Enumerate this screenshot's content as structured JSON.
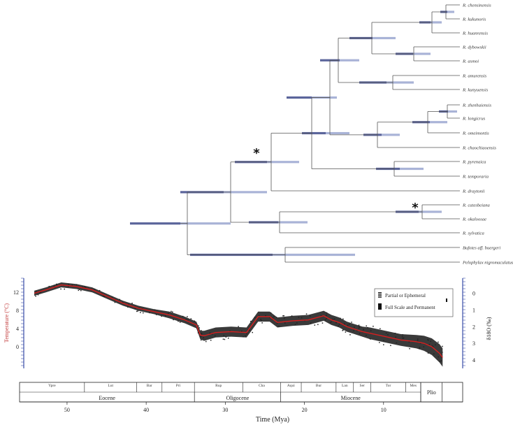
{
  "phylogeny": {
    "taxa": [
      "R. chensinensis",
      "R. kukunoris",
      "R. huanrensis",
      "R. dybowskii",
      "R. asmoi",
      "R. amurensis",
      "R. kunyuensis",
      "R. zhenhaiensis",
      "R. longicrus",
      "R. omeimontis",
      "R. chaochiaoensis",
      "R. pyrenaica",
      "R. temporaria",
      "R. draytonii",
      "R. catesbeiana",
      "R. okaloosae",
      "R. sylvatica",
      "Bufotes aff. buergeri",
      "Pelophylax nigromaculatus"
    ],
    "calibration_marker": "*",
    "colors": {
      "branch": "#555555",
      "ci_bar_dark": "#3e4a8a",
      "ci_bar_light": "#9aa6d0"
    }
  },
  "chart_data": {
    "type": "line",
    "series": [
      {
        "x": [
          55.5,
          54,
          52,
          50,
          48,
          46,
          44,
          42,
          40,
          38,
          36,
          34.5,
          34,
          33.5,
          32,
          30,
          28,
          26.5,
          25,
          24,
          22,
          20,
          18,
          17,
          16,
          15,
          14,
          13,
          12,
          10,
          8,
          6,
          5,
          4,
          3,
          2.6
        ],
        "y": [
          0.0,
          -0.2,
          -0.5,
          -0.4,
          -0.2,
          0.2,
          0.6,
          0.9,
          1.1,
          1.3,
          1.6,
          1.9,
          2.5,
          2.55,
          2.35,
          2.3,
          2.35,
          1.4,
          1.4,
          1.75,
          1.65,
          1.6,
          1.35,
          1.6,
          1.75,
          2.0,
          2.15,
          2.3,
          2.4,
          2.6,
          2.8,
          2.9,
          3.0,
          3.2,
          3.6,
          3.85
        ],
        "spread": [
          0.15,
          0.15,
          0.15,
          0.15,
          0.15,
          0.15,
          0.15,
          0.15,
          0.15,
          0.2,
          0.2,
          0.2,
          0.25,
          0.3,
          0.3,
          0.3,
          0.3,
          0.3,
          0.3,
          0.3,
          0.3,
          0.3,
          0.3,
          0.3,
          0.3,
          0.3,
          0.3,
          0.3,
          0.35,
          0.35,
          0.35,
          0.4,
          0.45,
          0.5,
          0.55,
          0.55
        ],
        "color": "#d81f1f"
      }
    ],
    "xlabel": "Time (Mya)",
    "x_ticks": [
      50,
      40,
      30,
      20,
      10
    ],
    "xlim": [
      56.5,
      0
    ],
    "ylabel_left": "Temperature (°C)",
    "y_ticks_left": [
      12,
      8,
      4,
      0
    ],
    "ylabel_right": "δ18O (‰)",
    "y_ticks_right": [
      0,
      1,
      2,
      3,
      4
    ],
    "ylim_right": [
      -0.9,
      4.5
    ],
    "legend": {
      "partial": "Partial or Ephemeral",
      "full": "Full Scale and Permanent"
    },
    "epochs": [
      {
        "name": "Eocene",
        "from": 56,
        "to": 33.9
      },
      {
        "name": "Oligocene",
        "from": 33.9,
        "to": 23
      },
      {
        "name": "Miocene",
        "from": 23,
        "to": 5.3
      },
      {
        "name": "Plio",
        "from": 5.3,
        "to": 2.6
      }
    ],
    "stages": [
      {
        "name": "Ypre",
        "from": 56,
        "to": 47.8
      },
      {
        "name": "Lut",
        "from": 47.8,
        "to": 41.2
      },
      {
        "name": "Bar",
        "from": 41.2,
        "to": 38
      },
      {
        "name": "Pri",
        "from": 38,
        "to": 33.9
      },
      {
        "name": "Rup",
        "from": 33.9,
        "to": 27.8
      },
      {
        "name": "Cha",
        "from": 27.8,
        "to": 23
      },
      {
        "name": "Aqui",
        "from": 23,
        "to": 20.4
      },
      {
        "name": "Bur",
        "from": 20.4,
        "to": 16
      },
      {
        "name": "Lan",
        "from": 16,
        "to": 13.8
      },
      {
        "name": "Ser",
        "from": 13.8,
        "to": 11.6
      },
      {
        "name": "Tor",
        "from": 11.6,
        "to": 7.2
      },
      {
        "name": "Mes",
        "from": 7.2,
        "to": 5.3
      }
    ]
  }
}
